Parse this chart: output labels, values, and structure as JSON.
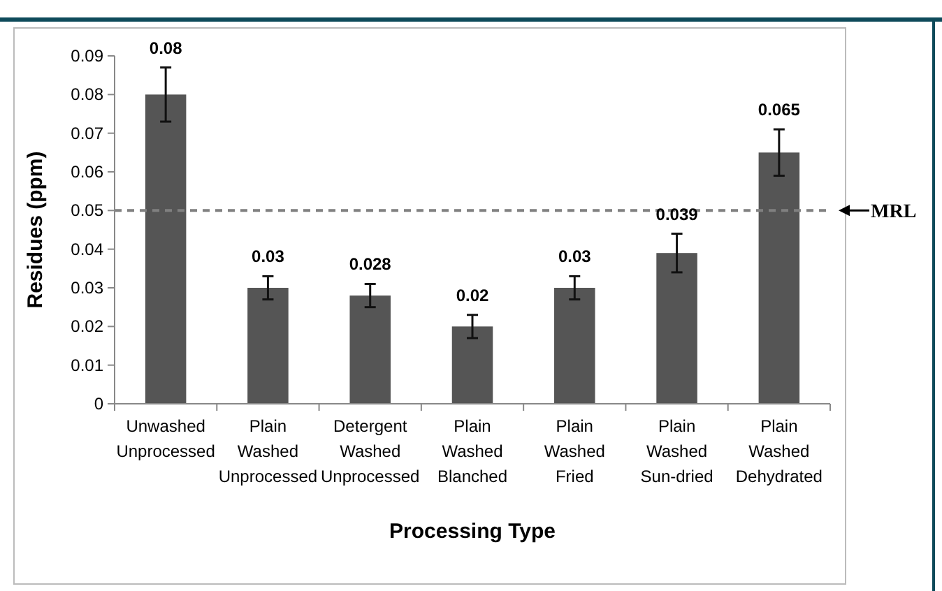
{
  "chart_data": {
    "type": "bar",
    "xlabel": "Processing Type",
    "ylabel": "Residues (ppm)",
    "categories": [
      "Unwashed Unprocessed",
      "Plain Washed Unprocessed",
      "Detergent Washed Unprocessed",
      "Plain Washed Blanched",
      "Plain Washed Fried",
      "Plain Washed Sun-dried",
      "Plain Washed Dehydrated"
    ],
    "values": [
      0.08,
      0.03,
      0.028,
      0.02,
      0.03,
      0.039,
      0.065
    ],
    "errors": [
      0.007,
      0.003,
      0.003,
      0.003,
      0.003,
      0.005,
      0.006
    ],
    "color": "#555555",
    "data_labels": true,
    "ylim": [
      0,
      0.09
    ],
    "yticks": [
      0,
      0.01,
      0.02,
      0.03,
      0.04,
      0.05,
      0.06,
      0.07,
      0.08,
      0.09
    ],
    "ref_lines": [
      {
        "axis": "y",
        "value": 0.05,
        "label": "MRL",
        "color": "#808080",
        "line_style": "dashed"
      }
    ],
    "grid": false
  }
}
